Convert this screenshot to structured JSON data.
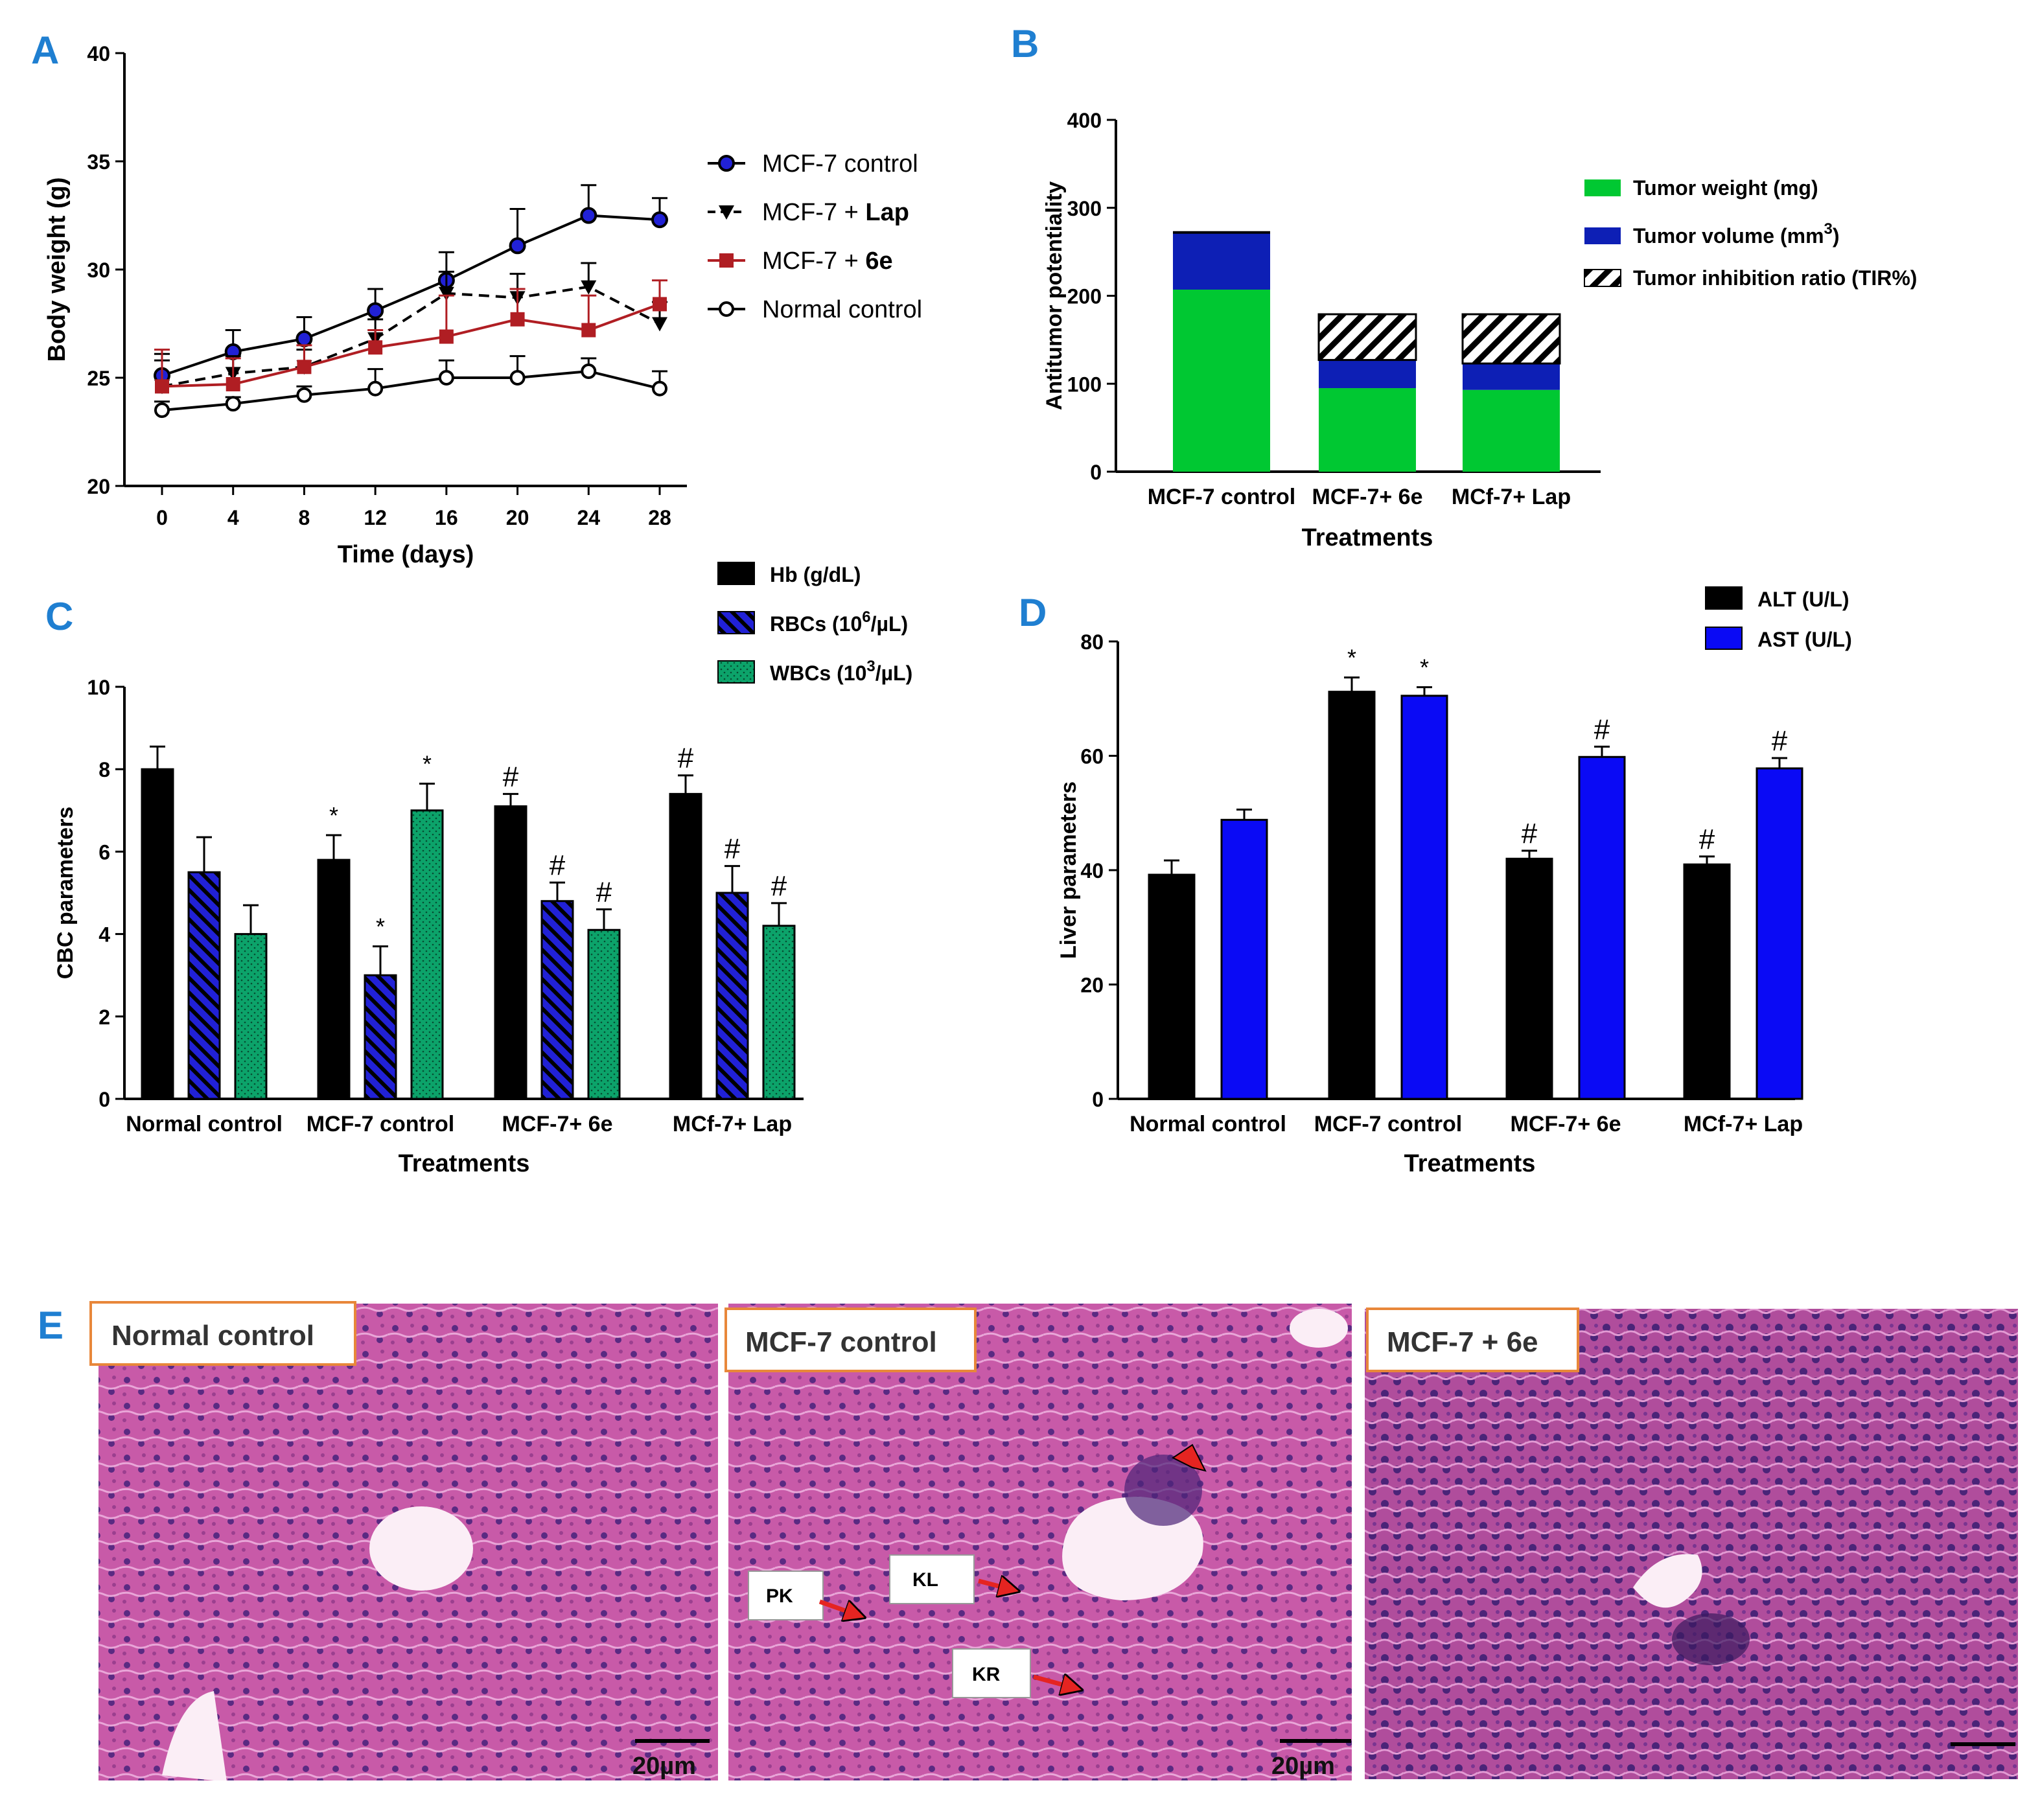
{
  "colors": {
    "panel_label": "#1f7fd1",
    "black": "#000000",
    "red": "#b01e23",
    "blue": "#2121d6",
    "navy": "#0d1fb5",
    "green": "#00c832",
    "teal": "#0ca36a",
    "tissue": "#c85aa8",
    "tissue_dark": "#5a2a82",
    "arrow": "#e52421",
    "label_border": "#e8873a"
  },
  "chart_data": [
    {
      "panel": "A",
      "type": "line",
      "xlabel": "Time (days)",
      "ylabel": "Body weight (g)",
      "x": [
        0,
        4,
        8,
        12,
        16,
        20,
        24,
        28
      ],
      "xticks": [
        "0",
        "4",
        "8",
        "12",
        "16",
        "20",
        "24",
        "28"
      ],
      "ylim": [
        20,
        40
      ],
      "yticks": [
        "20",
        "25",
        "30",
        "35",
        "40"
      ],
      "series": [
        {
          "name": "MCF-7 control",
          "color": "#000000",
          "marker": "circle-blue",
          "values": [
            25.1,
            26.2,
            26.8,
            28.1,
            29.5,
            31.1,
            32.5,
            32.3
          ],
          "errors": [
            1.0,
            1.0,
            1.0,
            1.0,
            1.3,
            1.7,
            1.4,
            1.0
          ]
        },
        {
          "name_pre": "MCF-7 + ",
          "name_bold": "Lap",
          "color": "#000000",
          "marker": "triangle-down",
          "dashed": true,
          "values": [
            24.6,
            25.2,
            25.5,
            26.8,
            28.9,
            28.7,
            29.2,
            27.5
          ],
          "errors": [
            1.2,
            0.8,
            0.8,
            0.9,
            1.0,
            1.1,
            1.1,
            1.0
          ]
        },
        {
          "name_pre": "MCF-7 + ",
          "name_bold": "6e",
          "color": "#b01e23",
          "marker": "square",
          "values": [
            24.6,
            24.7,
            25.5,
            26.4,
            26.9,
            27.7,
            27.2,
            28.4
          ],
          "errors": [
            1.7,
            1.2,
            1.0,
            0.8,
            1.9,
            1.4,
            1.6,
            1.1
          ]
        },
        {
          "name": "Normal control",
          "color": "#000000",
          "marker": "circle-open",
          "values": [
            23.5,
            23.8,
            24.2,
            24.5,
            25.0,
            25.0,
            25.3,
            24.5
          ],
          "errors": [
            0.4,
            0.3,
            0.4,
            0.9,
            0.8,
            1.0,
            0.6,
            0.8
          ]
        }
      ]
    },
    {
      "panel": "B",
      "type": "bar",
      "stacked": true,
      "xlabel": "Treatments",
      "ylabel": "Antitumor potentiality",
      "categories": [
        "MCF-7 control",
        "MCF-7+ 6e",
        "MCf-7+ Lap"
      ],
      "ylim": [
        0,
        400
      ],
      "yticks": [
        "0",
        "100",
        "200",
        "300",
        "400"
      ],
      "series": [
        {
          "name": "Tumor weight (mg)",
          "color": "#00c832",
          "values": [
            207,
            95,
            93
          ]
        },
        {
          "name_pre": "Tumor volume (mm",
          "name_sup": "3",
          "name_post": ")",
          "color": "#0d1fb5",
          "values": [
            65,
            32,
            30
          ]
        },
        {
          "name": "Tumor inhibition ratio (TIR%)",
          "pattern": "hatch",
          "values": [
            0,
            52,
            56
          ]
        }
      ]
    },
    {
      "panel": "C",
      "type": "bar",
      "xlabel": "Treatments",
      "ylabel": "CBC parameters",
      "categories": [
        "Normal control",
        "MCF-7 control",
        "MCF-7+ 6e",
        "MCf-7+ Lap"
      ],
      "ylim": [
        0,
        10
      ],
      "yticks": [
        "0",
        "2",
        "4",
        "6",
        "8",
        "10"
      ],
      "series": [
        {
          "name": "Hb  (g/dL)",
          "color": "#000000",
          "values": [
            8.0,
            5.8,
            7.1,
            7.4
          ],
          "errors": [
            0.55,
            0.6,
            0.3,
            0.45
          ],
          "marks": [
            "",
            "*",
            "#",
            "#"
          ]
        },
        {
          "name_pre": "RBCs (10",
          "name_sup": "6",
          "name_post": "/µL)",
          "color": "#2121d6",
          "pattern": "stripe",
          "values": [
            5.5,
            3.0,
            4.8,
            5.0
          ],
          "errors": [
            0.85,
            0.7,
            0.45,
            0.65
          ],
          "marks": [
            "",
            "*",
            "#",
            "#"
          ]
        },
        {
          "name_pre": "WBCs (10",
          "name_sup": "3",
          "name_post": "/µL)",
          "color": "#0ca36a",
          "pattern": "dots",
          "values": [
            4.0,
            7.0,
            4.1,
            4.2
          ],
          "errors": [
            0.7,
            0.65,
            0.5,
            0.55
          ],
          "marks": [
            "",
            "*",
            "#",
            "#"
          ]
        }
      ]
    },
    {
      "panel": "D",
      "type": "bar",
      "xlabel": "Treatments",
      "ylabel": "Liver parameters",
      "categories": [
        "Normal control",
        "MCF-7 control",
        "MCF-7+ 6e",
        "MCf-7+ Lap"
      ],
      "ylim": [
        0,
        80
      ],
      "yticks": [
        "0",
        "20",
        "40",
        "60",
        "80"
      ],
      "series": [
        {
          "name": "ALT (U/L)",
          "color": "#000000",
          "values": [
            39.2,
            71.2,
            42.0,
            41.0
          ],
          "errors": [
            2.5,
            2.5,
            1.4,
            1.4
          ],
          "marks": [
            "",
            "*",
            "#",
            "#"
          ]
        },
        {
          "name": "AST (U/L)",
          "color": "#0a0af5",
          "values": [
            48.8,
            70.5,
            59.8,
            57.8
          ],
          "errors": [
            1.8,
            1.5,
            1.8,
            1.8
          ],
          "marks": [
            "",
            "*",
            "#",
            "#"
          ]
        }
      ]
    }
  ],
  "panels": {
    "a": "A",
    "b": "B",
    "c": "C",
    "d": "D",
    "e": "E"
  },
  "histology": {
    "images": [
      {
        "label": "Normal control",
        "scale": "20µm"
      },
      {
        "label": "MCF-7 control",
        "scale": "20µm",
        "annotations": [
          "PK",
          "KL",
          "KR"
        ]
      },
      {
        "label": "MCF-7 + 6e"
      }
    ]
  }
}
